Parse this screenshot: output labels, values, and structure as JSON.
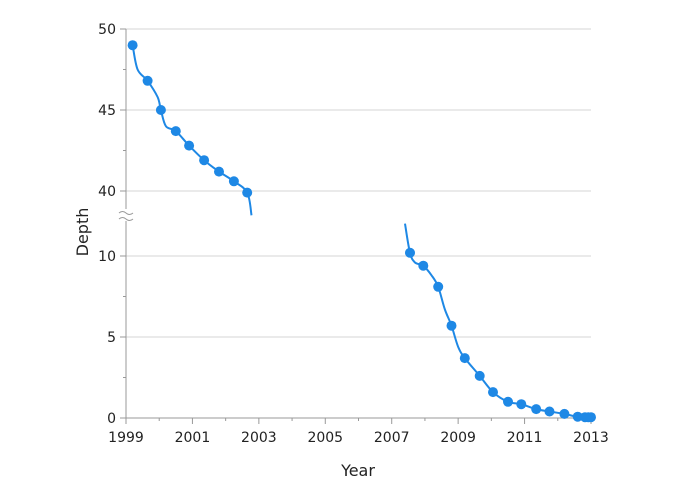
{
  "chart_data": {
    "type": "scatter",
    "title": "",
    "xlabel": "Year",
    "ylabel": "Depth",
    "grid": true,
    "axis_break": {
      "y_from": 12,
      "y_to": 38.5
    },
    "xlim": [
      1999,
      2013
    ],
    "ylim": [
      0,
      50
    ],
    "x_ticks": [
      1999,
      2001,
      2003,
      2005,
      2007,
      2009,
      2011,
      2013
    ],
    "y_ticks": [
      0,
      5,
      10,
      40,
      45,
      50
    ],
    "color": "#1e88e5",
    "series": [
      {
        "segment": "upper",
        "points": [
          {
            "x": 1999.2,
            "y": 49.0
          },
          {
            "x": 1999.65,
            "y": 46.8
          },
          {
            "x": 2000.05,
            "y": 45.0
          },
          {
            "x": 2000.5,
            "y": 43.7
          },
          {
            "x": 2000.9,
            "y": 42.8
          },
          {
            "x": 2001.35,
            "y": 41.9
          },
          {
            "x": 2001.8,
            "y": 41.2
          },
          {
            "x": 2002.25,
            "y": 40.6
          },
          {
            "x": 2002.65,
            "y": 39.9
          }
        ],
        "curve": [
          {
            "x": 1999.2,
            "y": 49.0
          },
          {
            "x": 1999.35,
            "y": 47.5
          },
          {
            "x": 1999.65,
            "y": 46.8
          },
          {
            "x": 1999.95,
            "y": 45.8
          },
          {
            "x": 2000.05,
            "y": 45.0
          },
          {
            "x": 2000.2,
            "y": 44.0
          },
          {
            "x": 2000.5,
            "y": 43.7
          },
          {
            "x": 2000.9,
            "y": 42.8
          },
          {
            "x": 2001.35,
            "y": 41.9
          },
          {
            "x": 2001.8,
            "y": 41.2
          },
          {
            "x": 2002.25,
            "y": 40.6
          },
          {
            "x": 2002.65,
            "y": 39.9
          },
          {
            "x": 2002.78,
            "y": 38.5
          }
        ]
      },
      {
        "segment": "lower",
        "points": [
          {
            "x": 2007.55,
            "y": 10.2
          },
          {
            "x": 2007.95,
            "y": 9.4
          },
          {
            "x": 2008.4,
            "y": 8.1
          },
          {
            "x": 2008.8,
            "y": 5.7
          },
          {
            "x": 2009.2,
            "y": 3.7
          },
          {
            "x": 2009.65,
            "y": 2.6
          },
          {
            "x": 2010.05,
            "y": 1.6
          },
          {
            "x": 2010.5,
            "y": 1.0
          },
          {
            "x": 2010.9,
            "y": 0.85
          },
          {
            "x": 2011.35,
            "y": 0.55
          },
          {
            "x": 2011.75,
            "y": 0.4
          },
          {
            "x": 2012.2,
            "y": 0.25
          },
          {
            "x": 2012.6,
            "y": 0.08
          },
          {
            "x": 2012.82,
            "y": 0.05
          },
          {
            "x": 2012.92,
            "y": 0.05
          },
          {
            "x": 2013.0,
            "y": 0.05
          }
        ],
        "curve": [
          {
            "x": 2007.4,
            "y": 12.0
          },
          {
            "x": 2007.55,
            "y": 10.2
          },
          {
            "x": 2007.7,
            "y": 9.6
          },
          {
            "x": 2007.95,
            "y": 9.4
          },
          {
            "x": 2008.2,
            "y": 8.8
          },
          {
            "x": 2008.4,
            "y": 8.1
          },
          {
            "x": 2008.6,
            "y": 6.7
          },
          {
            "x": 2008.8,
            "y": 5.7
          },
          {
            "x": 2009.0,
            "y": 4.4
          },
          {
            "x": 2009.2,
            "y": 3.7
          },
          {
            "x": 2009.65,
            "y": 2.6
          },
          {
            "x": 2010.05,
            "y": 1.6
          },
          {
            "x": 2010.5,
            "y": 1.0
          },
          {
            "x": 2010.9,
            "y": 0.85
          },
          {
            "x": 2011.35,
            "y": 0.55
          },
          {
            "x": 2011.75,
            "y": 0.4
          },
          {
            "x": 2012.2,
            "y": 0.25
          },
          {
            "x": 2012.6,
            "y": 0.08
          },
          {
            "x": 2013.0,
            "y": 0.05
          }
        ]
      }
    ]
  }
}
